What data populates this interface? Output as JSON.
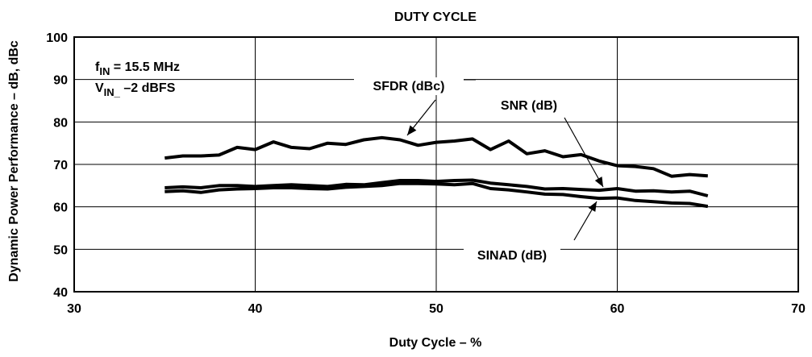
{
  "chart_data": {
    "type": "line",
    "title": "DUTY CYCLE",
    "x_label": "Duty Cycle – %",
    "y_label": "Dynamic Power Performance – dB, dBc",
    "x": [
      35,
      36,
      37,
      38,
      39,
      40,
      41,
      42,
      43,
      44,
      45,
      46,
      47,
      48,
      49,
      50,
      51,
      52,
      53,
      54,
      55,
      56,
      57,
      58,
      59,
      60,
      61,
      62,
      63,
      64,
      65
    ],
    "series": [
      {
        "name": "SFDR (dBc)",
        "color": "#000000",
        "values": [
          71.5,
          72,
          72,
          72.2,
          74,
          73.5,
          75.3,
          74,
          73.7,
          75,
          74.7,
          75.8,
          76.3,
          75.8,
          74.5,
          75.2,
          75.5,
          76,
          73.5,
          75.5,
          72.5,
          73.2,
          71.8,
          72.3,
          70.8,
          69.7,
          69.5,
          69,
          67.2,
          67.6,
          67.3
        ]
      },
      {
        "name": "SNR (dB)",
        "color": "#000000",
        "values": [
          64.5,
          64.7,
          64.5,
          65,
          65,
          64.8,
          65,
          65.2,
          65,
          64.8,
          65.3,
          65.2,
          65.7,
          66.2,
          66.2,
          66,
          66.2,
          66.3,
          65.6,
          65.2,
          64.8,
          64.2,
          64.3,
          64.1,
          63.9,
          64.3,
          63.7,
          63.8,
          63.5,
          63.7,
          62.6
        ]
      },
      {
        "name": "SINAD (dB)",
        "color": "#000000",
        "values": [
          63.6,
          63.8,
          63.4,
          64,
          64.2,
          64.3,
          64.5,
          64.5,
          64.3,
          64.2,
          64.6,
          64.8,
          65,
          65.5,
          65.5,
          65.4,
          65.2,
          65.5,
          64.3,
          64,
          63.5,
          63,
          62.9,
          62.4,
          62,
          62.1,
          61.5,
          61.2,
          60.9,
          60.8,
          60.1
        ]
      }
    ],
    "annotations": [
      {
        "main": "f",
        "sub": "IN",
        "rest": " = 15.5 MHz"
      },
      {
        "main": "V",
        "sub": "IN_",
        "rest": " –2 dBFS"
      }
    ],
    "xlim": [
      30,
      70
    ],
    "xticks": [
      30,
      40,
      50,
      60,
      70
    ],
    "ylim": [
      40,
      100
    ],
    "yticks": [
      40,
      50,
      60,
      70,
      80,
      90,
      100
    ],
    "grid": true
  }
}
